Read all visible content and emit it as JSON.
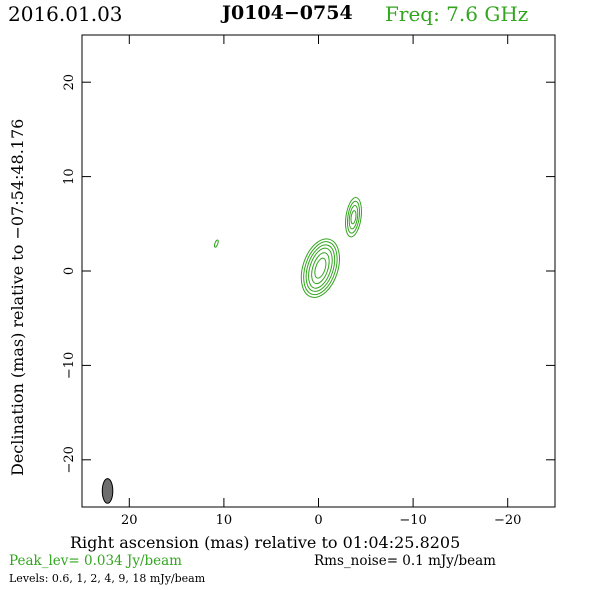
{
  "header": {
    "date": "2016.01.03",
    "source": "J0104−0754",
    "frequency": "Freq: 7.6 GHz"
  },
  "footer": {
    "peak": "Peak_lev=  0.034 Jy/beam",
    "rms": "Rms_noise=  0.1 mJy/beam",
    "levels": "Levels: 0.6,  1,  2,  4,  9,  18 mJy/beam"
  },
  "colors": {
    "contour": "#33a51f",
    "text_green": "#33a51f",
    "beam_fill": "#6e6e6e"
  },
  "chart_data": {
    "type": "contour",
    "title": "J0104−0754",
    "xlabel": "Right ascension (mas) relative to 01:04:25.8205",
    "ylabel": "Declination (mas) relative to −07:54:48.176",
    "xlim": [
      25,
      -25
    ],
    "ylim": [
      -25,
      25
    ],
    "x_ticks": [
      20,
      10,
      0,
      -10,
      -20
    ],
    "x_tick_labels": [
      "20",
      "10",
      "0",
      "−10",
      "−20"
    ],
    "y_ticks": [
      -20,
      -10,
      0,
      10,
      20
    ],
    "y_tick_labels": [
      "−20",
      "−10",
      "0",
      "10",
      "20"
    ],
    "grid": false,
    "contour_levels_mJy": [
      0.6,
      1,
      2,
      4,
      9,
      18
    ],
    "components": [
      {
        "x": -0.2,
        "y": 0.3,
        "contour_radii": [
          [
            1.85,
            3.2
          ],
          [
            1.6,
            2.9
          ],
          [
            1.35,
            2.55
          ],
          [
            1.1,
            2.2
          ],
          [
            0.8,
            1.7
          ],
          [
            0.5,
            1.1
          ]
        ],
        "pa_deg": 18
      },
      {
        "x": -3.7,
        "y": 5.7,
        "contour_radii": [
          [
            0.8,
            2.1
          ],
          [
            0.6,
            1.7
          ],
          [
            0.42,
            1.25
          ],
          [
            0.25,
            0.7
          ]
        ],
        "pa_deg": 8
      },
      {
        "x": 10.8,
        "y": 2.9,
        "contour_radii": [
          [
            0.15,
            0.4
          ]
        ],
        "pa_deg": 20
      }
    ],
    "beam": {
      "x": 22.3,
      "y": -23.3,
      "bmaj": 2.4,
      "bmin": 0.9,
      "pa_deg": 0
    }
  }
}
